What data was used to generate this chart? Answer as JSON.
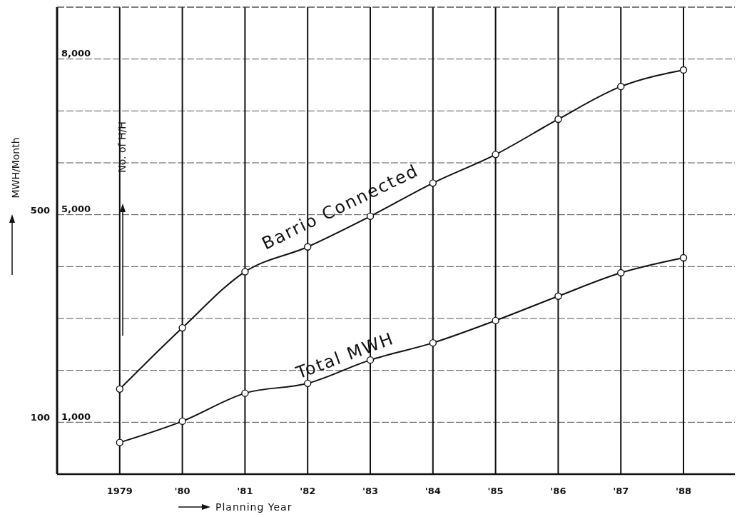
{
  "chart_data": {
    "type": "line",
    "categories": [
      "1979",
      "'80",
      "'81",
      "'82",
      "'83",
      "'84",
      "'85",
      "'86",
      "'87",
      "'88"
    ],
    "xlabel": "Planning Year",
    "ylabel": "MWH/Month",
    "y2label": "No. of H/H",
    "series": [
      {
        "name": "Barrio Connected",
        "color": "#111111",
        "axis": "y2",
        "values": [
          1640,
          2820,
          3900,
          4380,
          4970,
          5610,
          6160,
          6840,
          7470,
          7790
        ]
      },
      {
        "name": "Total MWH",
        "color": "#111111",
        "values": [
          61,
          102,
          156,
          175,
          220,
          253,
          296,
          343,
          388,
          417
        ]
      }
    ],
    "ylim": [
      0,
      900
    ],
    "yticks": [
      {
        "value": 100,
        "label": "100"
      },
      {
        "value": 200,
        "label": null
      },
      {
        "value": 300,
        "label": null
      },
      {
        "value": 400,
        "label": null
      },
      {
        "value": 500,
        "label": "500"
      },
      {
        "value": 600,
        "label": null
      },
      {
        "value": 700,
        "label": null
      },
      {
        "value": 800,
        "label": null
      },
      {
        "value": 900,
        "label": null
      }
    ],
    "y2lim": [
      0,
      9000
    ],
    "y2ticks": [
      {
        "value": 1000,
        "label": "1,000"
      },
      {
        "value": 5000,
        "label": "5,000"
      },
      {
        "value": 8000,
        "label": "8,000"
      }
    ],
    "grid": true,
    "marker": "circle",
    "line_style": "solid"
  }
}
